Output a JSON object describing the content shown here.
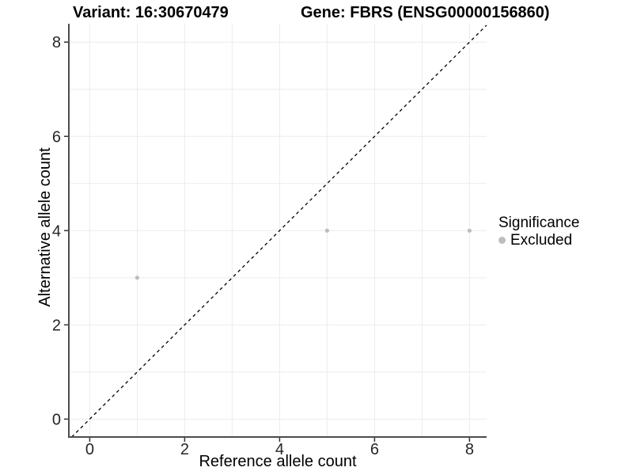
{
  "chart_data": {
    "type": "scatter",
    "title_left": "Variant: 16:30670479",
    "title_right": "Gene: FBRS (ENSG00000156860)",
    "xlabel": "Reference allele count",
    "ylabel": "Alternative allele count",
    "xlim": [
      -0.44,
      8.36
    ],
    "ylim": [
      -0.38,
      8.39
    ],
    "x_ticks": [
      0,
      2,
      4,
      6,
      8
    ],
    "y_ticks": [
      0,
      2,
      4,
      6,
      8
    ],
    "minor_gridlines": [
      1,
      3,
      5,
      7
    ],
    "grid": "on",
    "series": [
      {
        "name": "Excluded",
        "marker": "circle",
        "color": "#bdbdbd",
        "points": [
          {
            "x": 1,
            "y": 3
          },
          {
            "x": 5,
            "y": 4
          },
          {
            "x": 8,
            "y": 4
          }
        ]
      }
    ],
    "abline": {
      "slope": 1,
      "intercept": 0,
      "style": "dashed",
      "color": "#000000"
    },
    "legend": {
      "title": "Significance",
      "position": "right",
      "items": [
        {
          "label": "Excluded",
          "color": "#bdbdbd",
          "marker": "circle"
        }
      ]
    },
    "colors": {
      "background": "#ffffff",
      "grid": "#ececec",
      "axis_line": "#4d4d4d",
      "tick_mark": "#333333",
      "tick_label": "#262626",
      "point": "#bdbdbd"
    }
  }
}
